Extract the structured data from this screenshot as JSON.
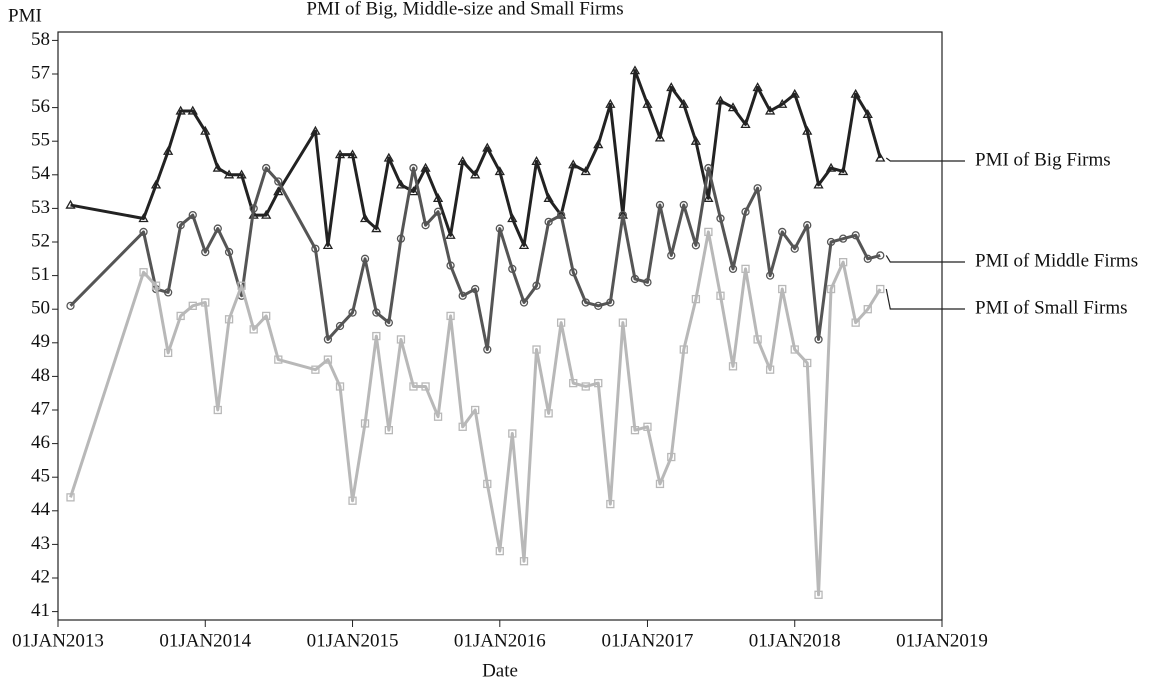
{
  "chart_data": {
    "type": "line",
    "title": "PMI of Big,  Middle-size and Small Firms",
    "y_label": "PMI",
    "x_label": "Date",
    "x": [
      "2013-02",
      "2013-08",
      "2013-09",
      "2013-10",
      "2013-11",
      "2013-12",
      "2014-01",
      "2014-02",
      "2014-03",
      "2014-04",
      "2014-05",
      "2014-06",
      "2014-07",
      "2014-10",
      "2014-11",
      "2014-12",
      "2015-01",
      "2015-02",
      "2015-03",
      "2015-04",
      "2015-05",
      "2015-06",
      "2015-07",
      "2015-08",
      "2015-09",
      "2015-10",
      "2015-11",
      "2015-12",
      "2016-01",
      "2016-02",
      "2016-03",
      "2016-04",
      "2016-05",
      "2016-06",
      "2016-07",
      "2016-08",
      "2016-09",
      "2016-10",
      "2016-11",
      "2016-12",
      "2017-01",
      "2017-02",
      "2017-03",
      "2017-04",
      "2017-05",
      "2017-06",
      "2017-07",
      "2017-08",
      "2017-09",
      "2017-10",
      "2017-11",
      "2017-12",
      "2018-01",
      "2018-02",
      "2018-03",
      "2018-04",
      "2018-05",
      "2018-06",
      "2018-07",
      "2018-08"
    ],
    "series": [
      {
        "name": "PMI of Big Firms",
        "color": "#222222",
        "marker": "triangle",
        "values": [
          53.1,
          52.7,
          53.7,
          54.7,
          55.9,
          55.9,
          55.3,
          54.2,
          54.0,
          54.0,
          52.8,
          52.8,
          53.5,
          55.3,
          51.9,
          54.6,
          54.6,
          52.7,
          52.4,
          54.5,
          53.7,
          53.5,
          54.2,
          53.3,
          52.2,
          54.4,
          54.0,
          54.8,
          54.1,
          52.7,
          51.9,
          54.4,
          53.3,
          52.8,
          54.3,
          54.1,
          54.9,
          56.1,
          52.8,
          57.1,
          56.1,
          55.1,
          56.6,
          56.1,
          55.0,
          53.3,
          56.2,
          56.0,
          55.5,
          56.6,
          55.9,
          56.1,
          56.4,
          55.3,
          53.7,
          54.2,
          54.1,
          56.4,
          55.8,
          54.5
        ]
      },
      {
        "name": "PMI of Middle Firms",
        "color": "#555555",
        "marker": "circle",
        "values": [
          50.1,
          52.3,
          50.6,
          50.5,
          52.5,
          52.8,
          51.7,
          52.4,
          51.7,
          50.4,
          53.0,
          54.2,
          53.8,
          51.8,
          49.1,
          49.5,
          49.9,
          51.5,
          49.9,
          49.6,
          52.1,
          54.2,
          52.5,
          52.9,
          51.3,
          50.4,
          50.6,
          48.8,
          52.4,
          51.2,
          50.2,
          50.7,
          52.6,
          52.8,
          51.1,
          50.2,
          50.1,
          50.2,
          52.8,
          50.9,
          50.8,
          53.1,
          51.6,
          53.1,
          51.9,
          54.2,
          52.7,
          51.2,
          52.9,
          53.6,
          51.0,
          52.3,
          51.8,
          52.5,
          49.1,
          52.0,
          52.1,
          52.2,
          51.5,
          51.6
        ]
      },
      {
        "name": "PMI of Small Firms",
        "color": "#b8b8b8",
        "marker": "square",
        "values": [
          44.4,
          51.1,
          50.7,
          48.7,
          49.8,
          50.1,
          50.2,
          47.0,
          49.7,
          50.7,
          49.4,
          49.8,
          48.5,
          48.2,
          48.5,
          47.7,
          44.3,
          46.6,
          49.2,
          46.4,
          49.1,
          47.7,
          47.7,
          46.8,
          49.8,
          46.5,
          47.0,
          44.8,
          42.8,
          46.3,
          42.5,
          48.8,
          46.9,
          49.6,
          47.8,
          47.7,
          47.8,
          44.2,
          49.6,
          46.4,
          46.5,
          44.8,
          45.6,
          48.8,
          50.3,
          52.3,
          50.4,
          48.3,
          51.2,
          49.1,
          48.2,
          50.6,
          48.8,
          48.4,
          41.5,
          50.6,
          51.4,
          49.6,
          50.0,
          50.6
        ]
      }
    ],
    "xlim": [
      "2013-01-01",
      "2019-01-01"
    ],
    "xticks": [
      {
        "value": "2013-01-01",
        "label": "01JAN2013"
      },
      {
        "value": "2014-01-01",
        "label": "01JAN2014"
      },
      {
        "value": "2015-01-01",
        "label": "01JAN2015"
      },
      {
        "value": "2016-01-01",
        "label": "01JAN2016"
      },
      {
        "value": "2017-01-01",
        "label": "01JAN2017"
      },
      {
        "value": "2018-01-01",
        "label": "01JAN2018"
      },
      {
        "value": "2019-01-01",
        "label": "01JAN2019"
      }
    ],
    "ylim": [
      40.75,
      58.25
    ],
    "yticks": [
      41,
      42,
      43,
      44,
      45,
      46,
      47,
      48,
      49,
      50,
      51,
      52,
      53,
      54,
      55,
      56,
      57,
      58
    ],
    "grid": false
  }
}
